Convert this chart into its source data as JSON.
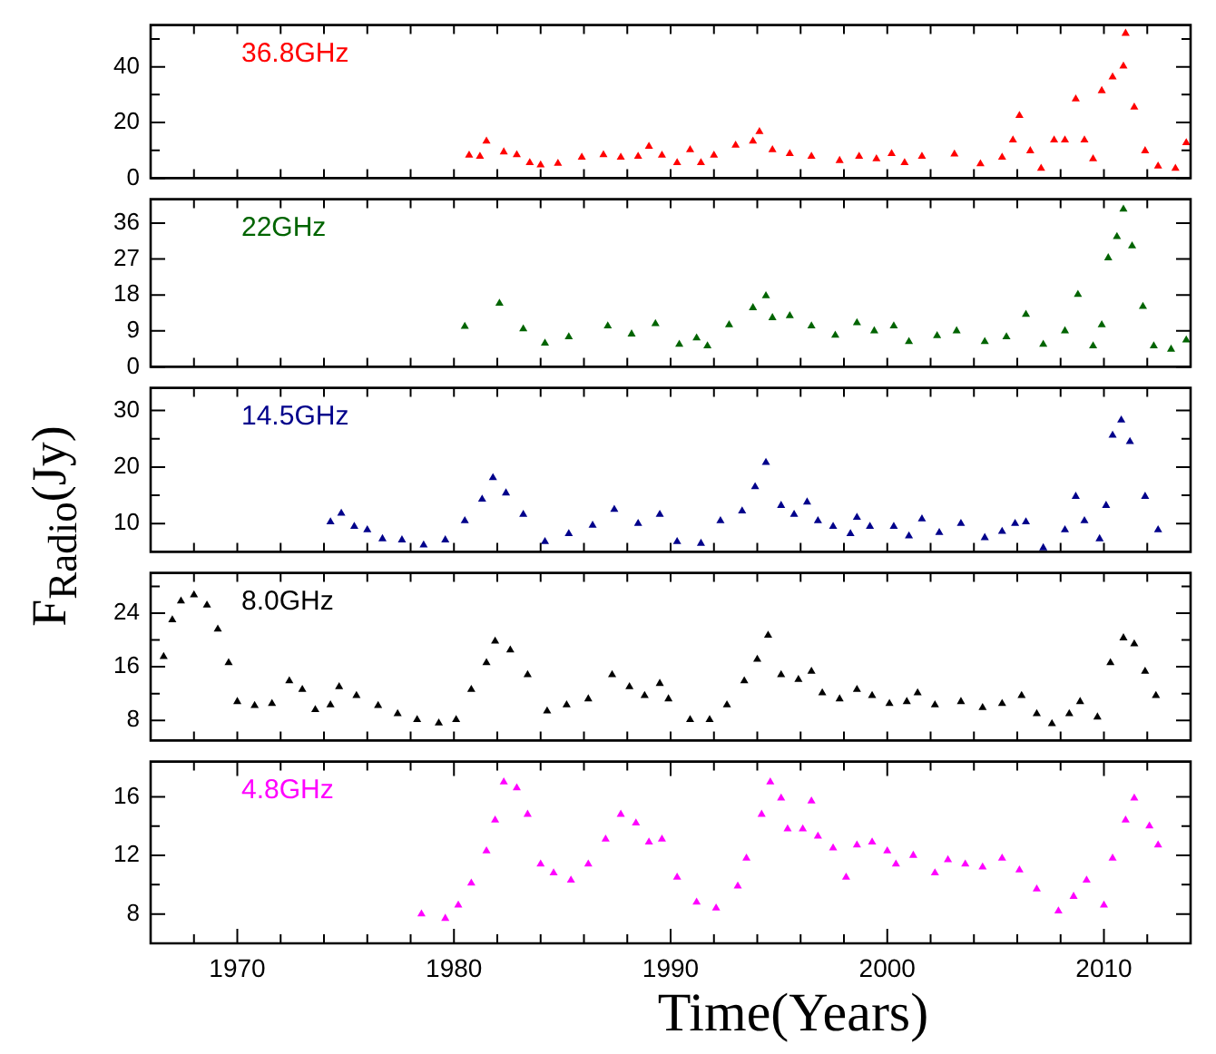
{
  "chart_data": [
    {
      "type": "scatter",
      "marker": "triangle",
      "grid": false,
      "legend": "top left",
      "tick_labels": "y",
      "xlim": [
        1966,
        2014
      ],
      "xticks": [
        {
          "value": 1966,
          "label": null
        },
        {
          "value": 1968,
          "label": null
        },
        {
          "value": 1970,
          "label": null
        },
        {
          "value": 1972,
          "label": null
        },
        {
          "value": 1974,
          "label": null
        },
        {
          "value": 1976,
          "label": null
        },
        {
          "value": 1978,
          "label": null
        },
        {
          "value": 1980,
          "label": null
        },
        {
          "value": 1982,
          "label": null
        },
        {
          "value": 1984,
          "label": null
        },
        {
          "value": 1986,
          "label": null
        },
        {
          "value": 1988,
          "label": null
        },
        {
          "value": 1990,
          "label": null
        },
        {
          "value": 1992,
          "label": null
        },
        {
          "value": 1994,
          "label": null
        },
        {
          "value": 1996,
          "label": null
        },
        {
          "value": 1998,
          "label": null
        },
        {
          "value": 2000,
          "label": null
        },
        {
          "value": 2002,
          "label": null
        },
        {
          "value": 2004,
          "label": null
        },
        {
          "value": 2006,
          "label": null
        },
        {
          "value": 2008,
          "label": null
        },
        {
          "value": 2010,
          "label": null
        },
        {
          "value": 2012,
          "label": null
        }
      ],
      "ylim": [
        0,
        55
      ],
      "yticks": [
        0,
        {
          "value": 10,
          "label": null
        },
        20,
        {
          "value": 30,
          "label": null
        },
        40,
        {
          "value": 50,
          "label": null
        }
      ],
      "series": [
        {
          "name": "36.8GHz",
          "color": "#ff0000",
          "x": [
            1980.7,
            1981.2,
            1981.5,
            1982.3,
            1982.9,
            1983.5,
            1984.0,
            1984.8,
            1985.9,
            1986.9,
            1987.7,
            1988.5,
            1989.0,
            1989.6,
            1990.3,
            1990.9,
            1991.4,
            1992.0,
            1993.0,
            1993.8,
            1994.1,
            1994.7,
            1995.5,
            1996.5,
            1997.8,
            1998.7,
            1999.5,
            2000.2,
            2000.8,
            2001.6,
            2003.1,
            2004.3,
            2005.3,
            2005.8,
            2006.1,
            2006.6,
            2007.1,
            2007.7,
            2008.2,
            2008.7,
            2009.1,
            2009.5,
            2009.9,
            2010.4,
            2010.9,
            2011.0,
            2011.4,
            2011.9,
            2012.5,
            2013.3,
            2013.8
          ],
          "values": [
            8.2,
            7.8,
            13.3,
            9.4,
            8.4,
            5.5,
            4.7,
            5.3,
            7.5,
            8.4,
            7.5,
            7.8,
            11.4,
            8.2,
            5.5,
            10.2,
            5.5,
            8.2,
            11.8,
            13.3,
            16.7,
            10.2,
            8.8,
            7.8,
            6.3,
            7.8,
            6.9,
            8.8,
            5.5,
            7.8,
            8.6,
            5.1,
            7.5,
            13.7,
            22.5,
            9.8,
            3.5,
            13.7,
            13.7,
            28.4,
            13.7,
            6.9,
            31.4,
            36.3,
            40.2,
            52,
            25.5,
            9.8,
            4.3,
            3.5,
            12.7
          ]
        }
      ]
    },
    {
      "type": "scatter",
      "marker": "triangle",
      "grid": false,
      "legend": "top left",
      "tick_labels": "y",
      "xlim": [
        1966,
        2014
      ],
      "xticks": [
        {
          "value": 1966,
          "label": null
        },
        {
          "value": 1968,
          "label": null
        },
        {
          "value": 1970,
          "label": null
        },
        {
          "value": 1972,
          "label": null
        },
        {
          "value": 1974,
          "label": null
        },
        {
          "value": 1976,
          "label": null
        },
        {
          "value": 1978,
          "label": null
        },
        {
          "value": 1980,
          "label": null
        },
        {
          "value": 1982,
          "label": null
        },
        {
          "value": 1984,
          "label": null
        },
        {
          "value": 1986,
          "label": null
        },
        {
          "value": 1988,
          "label": null
        },
        {
          "value": 1990,
          "label": null
        },
        {
          "value": 1992,
          "label": null
        },
        {
          "value": 1994,
          "label": null
        },
        {
          "value": 1996,
          "label": null
        },
        {
          "value": 1998,
          "label": null
        },
        {
          "value": 2000,
          "label": null
        },
        {
          "value": 2002,
          "label": null
        },
        {
          "value": 2004,
          "label": null
        },
        {
          "value": 2006,
          "label": null
        },
        {
          "value": 2008,
          "label": null
        },
        {
          "value": 2010,
          "label": null
        },
        {
          "value": 2012,
          "label": null
        }
      ],
      "ylim": [
        0,
        42
      ],
      "yticks": [
        0,
        9,
        18,
        27,
        36
      ],
      "series": [
        {
          "name": "22GHz",
          "color": "#006400",
          "x": [
            1980.5,
            1982.1,
            1983.2,
            1984.2,
            1985.3,
            1987.1,
            1988.2,
            1989.3,
            1990.4,
            1991.2,
            1991.7,
            1992.7,
            1993.8,
            1994.4,
            1994.7,
            1995.5,
            1996.5,
            1997.6,
            1998.6,
            1999.4,
            2000.3,
            2001.0,
            2002.3,
            2003.2,
            2004.5,
            2005.5,
            2006.4,
            2007.2,
            2008.2,
            2008.8,
            2009.5,
            2009.9,
            2010.2,
            2010.6,
            2010.9,
            2011.3,
            2011.8,
            2012.3,
            2013.1,
            2013.8
          ],
          "values": [
            10.1,
            15.9,
            9.5,
            5.9,
            7.5,
            10.2,
            8.2,
            10.8,
            5.6,
            7.2,
            5.2,
            10.5,
            14.8,
            17.8,
            12.3,
            12.8,
            10.2,
            7.9,
            11,
            9,
            10.2,
            6.3,
            7.8,
            9,
            6.3,
            7.5,
            13.1,
            5.6,
            9,
            18.1,
            5.2,
            10.5,
            27.3,
            32.6,
            39.5,
            30.3,
            15.1,
            5.2,
            4.4,
            6.7
          ]
        }
      ]
    },
    {
      "type": "scatter",
      "marker": "triangle",
      "grid": false,
      "legend": "top left",
      "tick_labels": "y",
      "ylabel": "F$_{Radio}$(Jy)",
      "xlim": [
        1966,
        2014
      ],
      "xticks": [
        {
          "value": 1966,
          "label": null
        },
        {
          "value": 1968,
          "label": null
        },
        {
          "value": 1970,
          "label": null
        },
        {
          "value": 1972,
          "label": null
        },
        {
          "value": 1974,
          "label": null
        },
        {
          "value": 1976,
          "label": null
        },
        {
          "value": 1978,
          "label": null
        },
        {
          "value": 1980,
          "label": null
        },
        {
          "value": 1982,
          "label": null
        },
        {
          "value": 1984,
          "label": null
        },
        {
          "value": 1986,
          "label": null
        },
        {
          "value": 1988,
          "label": null
        },
        {
          "value": 1990,
          "label": null
        },
        {
          "value": 1992,
          "label": null
        },
        {
          "value": 1994,
          "label": null
        },
        {
          "value": 1996,
          "label": null
        },
        {
          "value": 1998,
          "label": null
        },
        {
          "value": 2000,
          "label": null
        },
        {
          "value": 2002,
          "label": null
        },
        {
          "value": 2004,
          "label": null
        },
        {
          "value": 2006,
          "label": null
        },
        {
          "value": 2008,
          "label": null
        },
        {
          "value": 2010,
          "label": null
        },
        {
          "value": 2012,
          "label": null
        }
      ],
      "ylim": [
        5,
        34
      ],
      "yticks": [
        10,
        {
          "value": 15,
          "label": null
        },
        20,
        {
          "value": 25,
          "label": null
        },
        30
      ],
      "series": [
        {
          "name": "14.5GHz",
          "color": "#00008b",
          "x": [
            1974.3,
            1974.8,
            1975.4,
            1976.0,
            1976.7,
            1977.6,
            1978.6,
            1979.6,
            1980.5,
            1981.3,
            1981.8,
            1982.4,
            1983.2,
            1984.2,
            1985.3,
            1986.4,
            1987.4,
            1988.5,
            1989.5,
            1990.3,
            1991.4,
            1992.3,
            1993.3,
            1993.9,
            1994.4,
            1995.1,
            1995.7,
            1996.3,
            1996.8,
            1997.5,
            1998.3,
            1998.6,
            1999.2,
            2000.3,
            2001.0,
            2001.6,
            2002.4,
            2003.4,
            2004.5,
            2005.3,
            2005.9,
            2006.4,
            2007.2,
            2008.2,
            2008.7,
            2009.1,
            2009.8,
            2010.1,
            2010.4,
            2010.8,
            2011.2,
            2011.9,
            2012.5
          ],
          "values": [
            10.3,
            11.8,
            9.5,
            8.9,
            7.3,
            7.1,
            6.2,
            7.1,
            10.5,
            14.3,
            18.1,
            15.4,
            11.6,
            6.8,
            8.2,
            9.7,
            12.5,
            10,
            11.6,
            6.8,
            6.5,
            10.5,
            12.2,
            16.5,
            20.8,
            13.2,
            11.6,
            13.8,
            10.5,
            9.5,
            8.2,
            11.1,
            9.5,
            9.5,
            7.8,
            10.8,
            8.4,
            10,
            7.5,
            8.6,
            10,
            10.3,
            5.7,
            8.9,
            14.8,
            10.5,
            7.3,
            13.2,
            25.6,
            28.3,
            24.5,
            14.8,
            8.9
          ]
        }
      ]
    },
    {
      "type": "scatter",
      "marker": "triangle",
      "grid": false,
      "legend": "top left",
      "tick_labels": "y",
      "xlim": [
        1966,
        2014
      ],
      "xticks": [
        {
          "value": 1966,
          "label": null
        },
        {
          "value": 1968,
          "label": null
        },
        {
          "value": 1970,
          "label": null
        },
        {
          "value": 1972,
          "label": null
        },
        {
          "value": 1974,
          "label": null
        },
        {
          "value": 1976,
          "label": null
        },
        {
          "value": 1978,
          "label": null
        },
        {
          "value": 1980,
          "label": null
        },
        {
          "value": 1982,
          "label": null
        },
        {
          "value": 1984,
          "label": null
        },
        {
          "value": 1986,
          "label": null
        },
        {
          "value": 1988,
          "label": null
        },
        {
          "value": 1990,
          "label": null
        },
        {
          "value": 1992,
          "label": null
        },
        {
          "value": 1994,
          "label": null
        },
        {
          "value": 1996,
          "label": null
        },
        {
          "value": 1998,
          "label": null
        },
        {
          "value": 2000,
          "label": null
        },
        {
          "value": 2002,
          "label": null
        },
        {
          "value": 2004,
          "label": null
        },
        {
          "value": 2006,
          "label": null
        },
        {
          "value": 2008,
          "label": null
        },
        {
          "value": 2010,
          "label": null
        },
        {
          "value": 2012,
          "label": null
        }
      ],
      "ylim": [
        5,
        30
      ],
      "yticks": [
        8,
        {
          "value": 12,
          "label": null
        },
        16,
        {
          "value": 20,
          "label": null
        },
        24,
        {
          "value": 28,
          "label": null
        }
      ],
      "series": [
        {
          "name": "8.0GHz",
          "color": "#000000",
          "x": [
            1966.6,
            1967.0,
            1967.4,
            1968.0,
            1968.6,
            1969.1,
            1969.6,
            1970.0,
            1970.8,
            1971.6,
            1972.4,
            1973.0,
            1973.6,
            1974.3,
            1974.7,
            1975.5,
            1976.5,
            1977.4,
            1978.3,
            1979.3,
            1980.1,
            1980.8,
            1981.5,
            1981.9,
            1982.6,
            1983.4,
            1984.3,
            1985.2,
            1986.2,
            1987.3,
            1988.1,
            1988.8,
            1989.5,
            1989.9,
            1990.9,
            1991.8,
            1992.6,
            1993.4,
            1994.0,
            1994.5,
            1995.1,
            1995.9,
            1996.5,
            1997.0,
            1997.8,
            1998.6,
            1999.3,
            2000.1,
            2000.9,
            2001.4,
            2002.2,
            2003.4,
            2004.4,
            2005.3,
            2006.2,
            2006.9,
            2007.6,
            2008.4,
            2008.9,
            2009.7,
            2010.3,
            2010.9,
            2011.4,
            2011.9,
            2012.4
          ],
          "values": [
            17.5,
            23,
            25.8,
            26.7,
            25.2,
            21.6,
            16.6,
            10.8,
            10.2,
            10.5,
            13.9,
            12.6,
            9.6,
            10.3,
            13,
            11.7,
            10.2,
            9,
            8.1,
            7.6,
            8.1,
            12.6,
            16.6,
            19.8,
            18.5,
            14.8,
            9.4,
            10.3,
            11.2,
            14.8,
            13,
            11.7,
            13.5,
            11.2,
            8.1,
            8.1,
            10.3,
            13.9,
            17.1,
            20.7,
            14.8,
            14.1,
            15.3,
            12.1,
            11.2,
            12.6,
            11.7,
            10.5,
            10.8,
            12.1,
            10.3,
            10.8,
            9.9,
            10.5,
            11.7,
            9,
            7.5,
            9,
            10.8,
            8.5,
            16.6,
            20.3,
            19.4,
            15.3,
            11.7
          ]
        }
      ]
    },
    {
      "type": "scatter",
      "marker": "triangle",
      "grid": false,
      "legend": "top left",
      "xlabel": "Time(Years)",
      "xlim": [
        1966,
        2014
      ],
      "xticks": [
        {
          "value": 1966,
          "label": null
        },
        {
          "value": 1968,
          "label": null
        },
        1970,
        {
          "value": 1972,
          "label": null
        },
        {
          "value": 1974,
          "label": null
        },
        {
          "value": 1976,
          "label": null
        },
        {
          "value": 1978,
          "label": null
        },
        1980,
        {
          "value": 1982,
          "label": null
        },
        {
          "value": 1984,
          "label": null
        },
        {
          "value": 1986,
          "label": null
        },
        {
          "value": 1988,
          "label": null
        },
        1990,
        {
          "value": 1992,
          "label": null
        },
        {
          "value": 1994,
          "label": null
        },
        {
          "value": 1996,
          "label": null
        },
        {
          "value": 1998,
          "label": null
        },
        2000,
        {
          "value": 2002,
          "label": null
        },
        {
          "value": 2004,
          "label": null
        },
        {
          "value": 2006,
          "label": null
        },
        {
          "value": 2008,
          "label": null
        },
        2010,
        {
          "value": 2012,
          "label": null
        }
      ],
      "ylim": [
        6,
        18.4
      ],
      "yticks": [
        8,
        {
          "value": 10,
          "label": null
        },
        12,
        {
          "value": 14,
          "label": null
        },
        16
      ],
      "series": [
        {
          "name": "4.8GHz",
          "color": "#ff00ff",
          "x": [
            1978.5,
            1979.6,
            1980.2,
            1980.8,
            1981.5,
            1981.9,
            1982.3,
            1982.9,
            1983.4,
            1984.0,
            1984.6,
            1985.4,
            1986.2,
            1987.0,
            1987.7,
            1988.4,
            1989.0,
            1989.6,
            1990.3,
            1991.2,
            1992.1,
            1993.1,
            1993.5,
            1994.2,
            1994.6,
            1995.1,
            1995.4,
            1996.1,
            1996.5,
            1996.8,
            1997.5,
            1998.1,
            1998.6,
            1999.3,
            2000.0,
            2000.4,
            2001.2,
            2002.2,
            2002.8,
            2003.6,
            2004.4,
            2005.3,
            2006.1,
            2006.9,
            2007.9,
            2008.6,
            2009.2,
            2010.0,
            2010.4,
            2011.0,
            2011.4,
            2012.1,
            2012.5
          ],
          "values": [
            8,
            7.7,
            8.6,
            10.1,
            12.3,
            14.4,
            17,
            16.6,
            14.8,
            11.4,
            10.8,
            10.3,
            11.4,
            13.1,
            14.8,
            14.2,
            12.9,
            13.1,
            10.5,
            8.8,
            8.4,
            9.9,
            11.8,
            14.8,
            17,
            15.9,
            13.8,
            13.8,
            15.7,
            13.3,
            12.5,
            10.5,
            12.7,
            12.9,
            12.3,
            11.4,
            12,
            10.8,
            11.7,
            11.4,
            11.2,
            11.8,
            11,
            9.7,
            8.2,
            9.2,
            10.3,
            8.6,
            11.8,
            14.4,
            15.9,
            14,
            12.7
          ]
        }
      ]
    }
  ]
}
